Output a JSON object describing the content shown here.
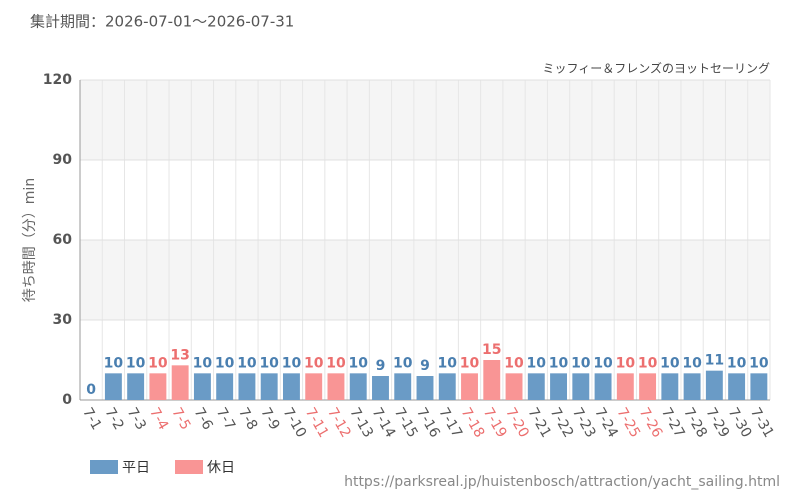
{
  "header": "集計期間：2026-07-01～2026-07-31",
  "footer": "https://parksreal.jp/huistenbosch/attraction/yacht_sailing.html",
  "chart_data": {
    "type": "bar",
    "title": "ミッフィー＆フレンズのヨットセーリング",
    "y_label": "待ち時間（分）min",
    "categories": [
      "7-1",
      "7-2",
      "7-3",
      "7-4",
      "7-5",
      "7-6",
      "7-7",
      "7-8",
      "7-9",
      "7-10",
      "7-11",
      "7-12",
      "7-13",
      "7-14",
      "7-15",
      "7-16",
      "7-17",
      "7-18",
      "7-19",
      "7-20",
      "7-21",
      "7-22",
      "7-23",
      "7-24",
      "7-25",
      "7-26",
      "7-27",
      "7-28",
      "7-29",
      "7-30",
      "7-31"
    ],
    "series": [
      {
        "name": "平日",
        "color": "#6a9bc6",
        "label_color": "#4a7fb0",
        "values": [
          0,
          10,
          10,
          null,
          null,
          10,
          10,
          10,
          10,
          10,
          null,
          null,
          10,
          9,
          10,
          9,
          10,
          null,
          null,
          null,
          10,
          10,
          10,
          10,
          null,
          null,
          10,
          10,
          11,
          10,
          10
        ]
      },
      {
        "name": "休日",
        "color": "#f99595",
        "label_color": "#ec6f6f",
        "values": [
          null,
          null,
          null,
          10,
          13,
          null,
          null,
          null,
          null,
          null,
          10,
          10,
          null,
          null,
          null,
          null,
          null,
          10,
          15,
          10,
          null,
          null,
          null,
          null,
          10,
          10,
          null,
          null,
          null,
          null,
          null
        ]
      }
    ],
    "ylim": [
      0,
      120
    ],
    "yticks": [
      0,
      30,
      60,
      90,
      120
    ],
    "grid": true
  }
}
